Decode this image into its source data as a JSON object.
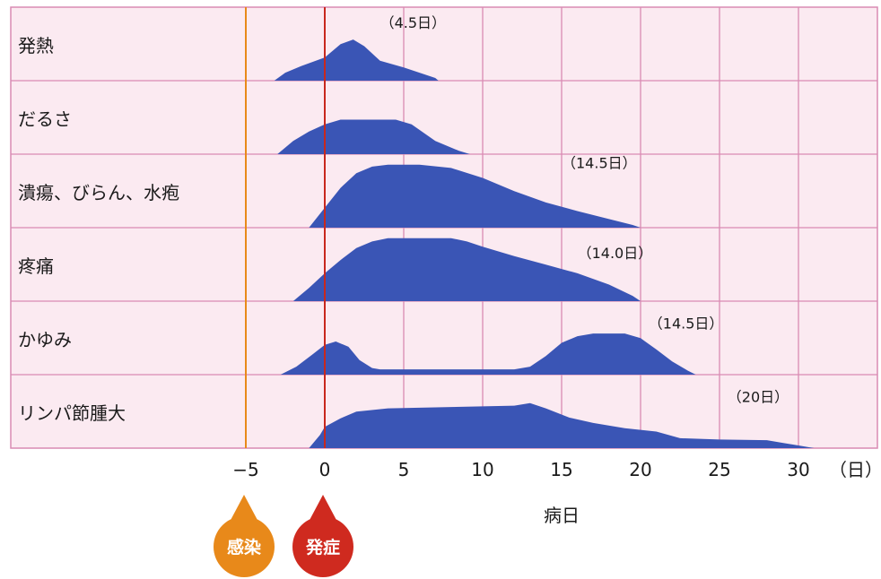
{
  "chart_data": {
    "type": "area",
    "xlabel": "病日",
    "x_unit": "（日）",
    "xlim": [
      -10,
      35
    ],
    "xticks": [
      {
        "value": -5,
        "label": "−5"
      },
      {
        "value": 0,
        "label": "0"
      },
      {
        "value": 5,
        "label": "5"
      },
      {
        "value": 10,
        "label": "10"
      },
      {
        "value": 15,
        "label": "15"
      },
      {
        "value": 20,
        "label": "20"
      },
      {
        "value": 25,
        "label": "25"
      },
      {
        "value": 30,
        "label": "30"
      }
    ],
    "grid": true,
    "colors": {
      "area": "#3a55b5",
      "grid": "#d98bb3",
      "background": "#fbeaf1",
      "infection_line": "#e88a1a",
      "onset_line": "#c8281e",
      "infection_marker": "#e8891a",
      "onset_marker": "#cf2a1f"
    },
    "markers": [
      {
        "name": "感染",
        "x": -5,
        "color": "#e8891a"
      },
      {
        "name": "発症",
        "x": 0,
        "color": "#cf2a1f"
      }
    ],
    "rows": [
      {
        "label": "発熱",
        "duration_label": "（4.5日）",
        "duration_x": 3.5,
        "duration_level": 0.85,
        "points": [
          [
            -3.2,
            0
          ],
          [
            -2.5,
            0.12
          ],
          [
            -1.5,
            0.22
          ],
          [
            0,
            0.35
          ],
          [
            1,
            0.55
          ],
          [
            1.8,
            0.62
          ],
          [
            2.5,
            0.52
          ],
          [
            3.5,
            0.3
          ],
          [
            5,
            0.2
          ],
          [
            6,
            0.12
          ],
          [
            7,
            0.04
          ],
          [
            7.2,
            0
          ]
        ]
      },
      {
        "label": "だるさ",
        "duration_label": "",
        "duration_x": 0,
        "duration_level": 0,
        "points": [
          [
            -3,
            0
          ],
          [
            -2,
            0.2
          ],
          [
            -1,
            0.34
          ],
          [
            0,
            0.45
          ],
          [
            1,
            0.52
          ],
          [
            4.5,
            0.52
          ],
          [
            5.5,
            0.45
          ],
          [
            7,
            0.2
          ],
          [
            8.5,
            0.05
          ],
          [
            9.2,
            0
          ]
        ]
      },
      {
        "label": "潰瘍、びらん、水疱",
        "duration_label": "（14.5日）",
        "duration_x": 15,
        "duration_level": 0.95,
        "points": [
          [
            -1,
            0
          ],
          [
            0,
            0.3
          ],
          [
            1,
            0.6
          ],
          [
            2,
            0.82
          ],
          [
            3,
            0.92
          ],
          [
            4,
            0.95
          ],
          [
            6,
            0.95
          ],
          [
            8,
            0.9
          ],
          [
            10,
            0.75
          ],
          [
            12,
            0.55
          ],
          [
            14,
            0.38
          ],
          [
            16,
            0.25
          ],
          [
            18,
            0.13
          ],
          [
            19.5,
            0.04
          ],
          [
            20,
            0
          ]
        ]
      },
      {
        "label": "疼痛",
        "duration_label": "（14.0日）",
        "duration_x": 16,
        "duration_level": 0.7,
        "points": [
          [
            -2,
            0
          ],
          [
            -1,
            0.2
          ],
          [
            0,
            0.42
          ],
          [
            1,
            0.62
          ],
          [
            2,
            0.8
          ],
          [
            3,
            0.9
          ],
          [
            4,
            0.95
          ],
          [
            6,
            0.95
          ],
          [
            8,
            0.95
          ],
          [
            9,
            0.9
          ],
          [
            10,
            0.82
          ],
          [
            12,
            0.68
          ],
          [
            14,
            0.55
          ],
          [
            16,
            0.42
          ],
          [
            18,
            0.25
          ],
          [
            19.5,
            0.08
          ],
          [
            20,
            0
          ]
        ]
      },
      {
        "label": "かゆみ",
        "duration_label": "（14.5日）",
        "duration_x": 20.5,
        "duration_level": 0.75,
        "points": [
          [
            -2.8,
            0
          ],
          [
            -1.8,
            0.12
          ],
          [
            -0.8,
            0.3
          ],
          [
            0,
            0.45
          ],
          [
            0.7,
            0.5
          ],
          [
            1.5,
            0.42
          ],
          [
            2.2,
            0.22
          ],
          [
            3,
            0.1
          ],
          [
            3.5,
            0.08
          ],
          [
            12,
            0.08
          ],
          [
            13,
            0.12
          ],
          [
            14,
            0.28
          ],
          [
            15,
            0.48
          ],
          [
            16,
            0.58
          ],
          [
            17,
            0.62
          ],
          [
            19,
            0.62
          ],
          [
            20,
            0.55
          ],
          [
            21,
            0.38
          ],
          [
            22,
            0.2
          ],
          [
            23,
            0.06
          ],
          [
            23.5,
            0
          ]
        ]
      },
      {
        "label": "リンパ節腫大",
        "duration_label": "（20日）",
        "duration_x": 25.5,
        "duration_level": 0.75,
        "points": [
          [
            -1,
            0
          ],
          [
            -0.3,
            0.2
          ],
          [
            0,
            0.32
          ],
          [
            1,
            0.45
          ],
          [
            2,
            0.55
          ],
          [
            4,
            0.6
          ],
          [
            8,
            0.62
          ],
          [
            12,
            0.64
          ],
          [
            13,
            0.68
          ],
          [
            14,
            0.6
          ],
          [
            15.5,
            0.46
          ],
          [
            17,
            0.38
          ],
          [
            19,
            0.3
          ],
          [
            21,
            0.25
          ],
          [
            22.5,
            0.15
          ],
          [
            25,
            0.13
          ],
          [
            28,
            0.12
          ],
          [
            29,
            0.08
          ],
          [
            30,
            0.04
          ],
          [
            31,
            0
          ]
        ]
      }
    ]
  }
}
